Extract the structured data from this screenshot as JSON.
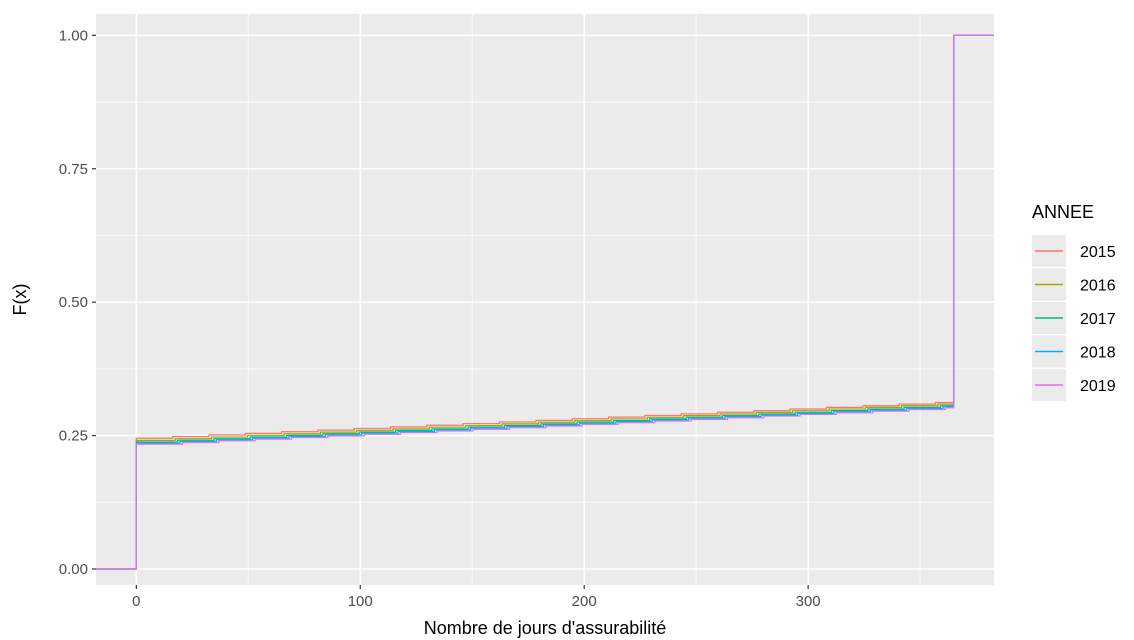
{
  "chart_data": {
    "type": "line",
    "step": true,
    "title": "",
    "xlabel": "Nombre de jours d'assurabilité",
    "ylabel": "F(x)",
    "xlim": [
      -18,
      383
    ],
    "ylim": [
      -0.03,
      1.04
    ],
    "xticks": [
      0,
      100,
      200,
      300
    ],
    "xtick_labels": [
      "0",
      "100",
      "200",
      "300"
    ],
    "yticks": [
      0,
      0.25,
      0.5,
      0.75,
      1
    ],
    "ytick_labels": [
      "0.00",
      "0.25",
      "0.50",
      "0.75",
      "1.00"
    ],
    "grid": true,
    "legend": {
      "title": "ANNEE",
      "position": "right"
    },
    "colors": {
      "panel_bg": "#ebebeb",
      "grid": "#ffffff"
    },
    "series": [
      {
        "name": "2015",
        "color": "#F8766D",
        "start": 0.245,
        "pre_jump": 0.312,
        "jump_x": 365,
        "end": 1.0
      },
      {
        "name": "2016",
        "color": "#A3A500",
        "start": 0.241,
        "pre_jump": 0.309,
        "jump_x": 365,
        "end": 1.0
      },
      {
        "name": "2017",
        "color": "#00BF7D",
        "start": 0.238,
        "pre_jump": 0.306,
        "jump_x": 365,
        "end": 1.0
      },
      {
        "name": "2018",
        "color": "#00B0F6",
        "start": 0.236,
        "pre_jump": 0.304,
        "jump_x": 365,
        "end": 1.0
      },
      {
        "name": "2019",
        "color": "#E76BF3",
        "start": 0.234,
        "pre_jump": 0.302,
        "jump_x": 365,
        "end": 1.0
      }
    ]
  }
}
